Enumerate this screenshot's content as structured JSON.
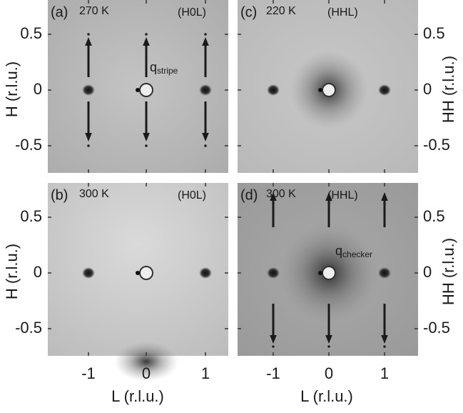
{
  "panels": [
    {
      "label": "(a)",
      "temperature": "270 K",
      "plane": "(H0L)",
      "arrow_label": "q",
      "arrow_subscript": "stripe"
    },
    {
      "label": "(b)",
      "temperature": "300 K",
      "plane": "(H0L)"
    },
    {
      "label": "(c)",
      "temperature": "220 K",
      "plane": "(HHL)"
    },
    {
      "label": "(d)",
      "temperature": "300 K",
      "plane": "(HHL)",
      "arrow_label": "q",
      "arrow_subscript": "checker"
    }
  ],
  "axes": {
    "left_label": "H (r.l.u.)",
    "right_label": "HH (r.l.u.)",
    "bottom_label": "L (r.l.u.)",
    "y_ticks": [
      "0.5",
      "0",
      "-0.5"
    ],
    "x_ticks": [
      "-1",
      "0",
      "1"
    ]
  }
}
